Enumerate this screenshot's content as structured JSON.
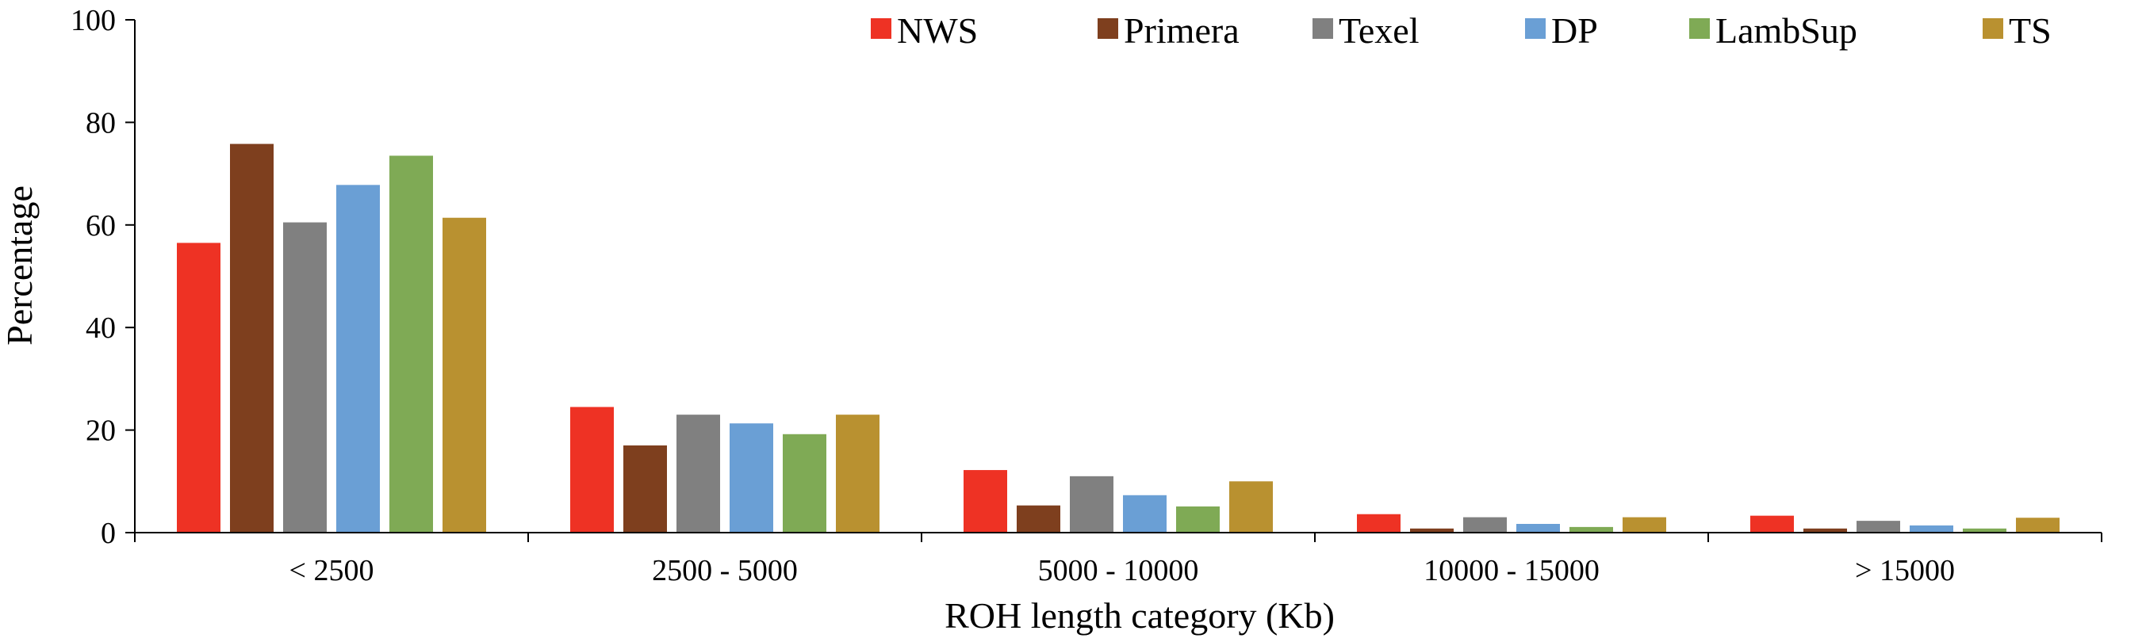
{
  "chart_data": {
    "type": "bar",
    "title": "",
    "xlabel": "ROH length category (Kb)",
    "ylabel": "Percentage",
    "ylim": [
      0,
      100
    ],
    "yticks": [
      "0",
      "20",
      "40",
      "60",
      "80",
      "100"
    ],
    "grid": false,
    "legend_position": "top",
    "categories": [
      "< 2500",
      "2500 - 5000",
      "5000 - 10000",
      "10000 - 15000",
      "> 15000"
    ],
    "series": [
      {
        "name": "NWS",
        "color": "#EE3224",
        "values": [
          56.5,
          24.5,
          12.2,
          3.6,
          3.3
        ]
      },
      {
        "name": "Primera",
        "color": "#7E3F1E",
        "values": [
          75.8,
          17.0,
          5.3,
          0.8,
          0.8
        ]
      },
      {
        "name": "Texel",
        "color": "#808080",
        "values": [
          60.5,
          23.0,
          11.0,
          3.0,
          2.3
        ]
      },
      {
        "name": "DP",
        "color": "#6A9FD5",
        "values": [
          67.8,
          21.3,
          7.3,
          1.7,
          1.4
        ]
      },
      {
        "name": "LambSup",
        "color": "#7FAA55",
        "values": [
          73.5,
          19.2,
          5.1,
          1.1,
          0.8
        ]
      },
      {
        "name": "TS",
        "color": "#B99130",
        "values": [
          61.4,
          23.0,
          10.0,
          3.0,
          2.9
        ]
      }
    ]
  }
}
